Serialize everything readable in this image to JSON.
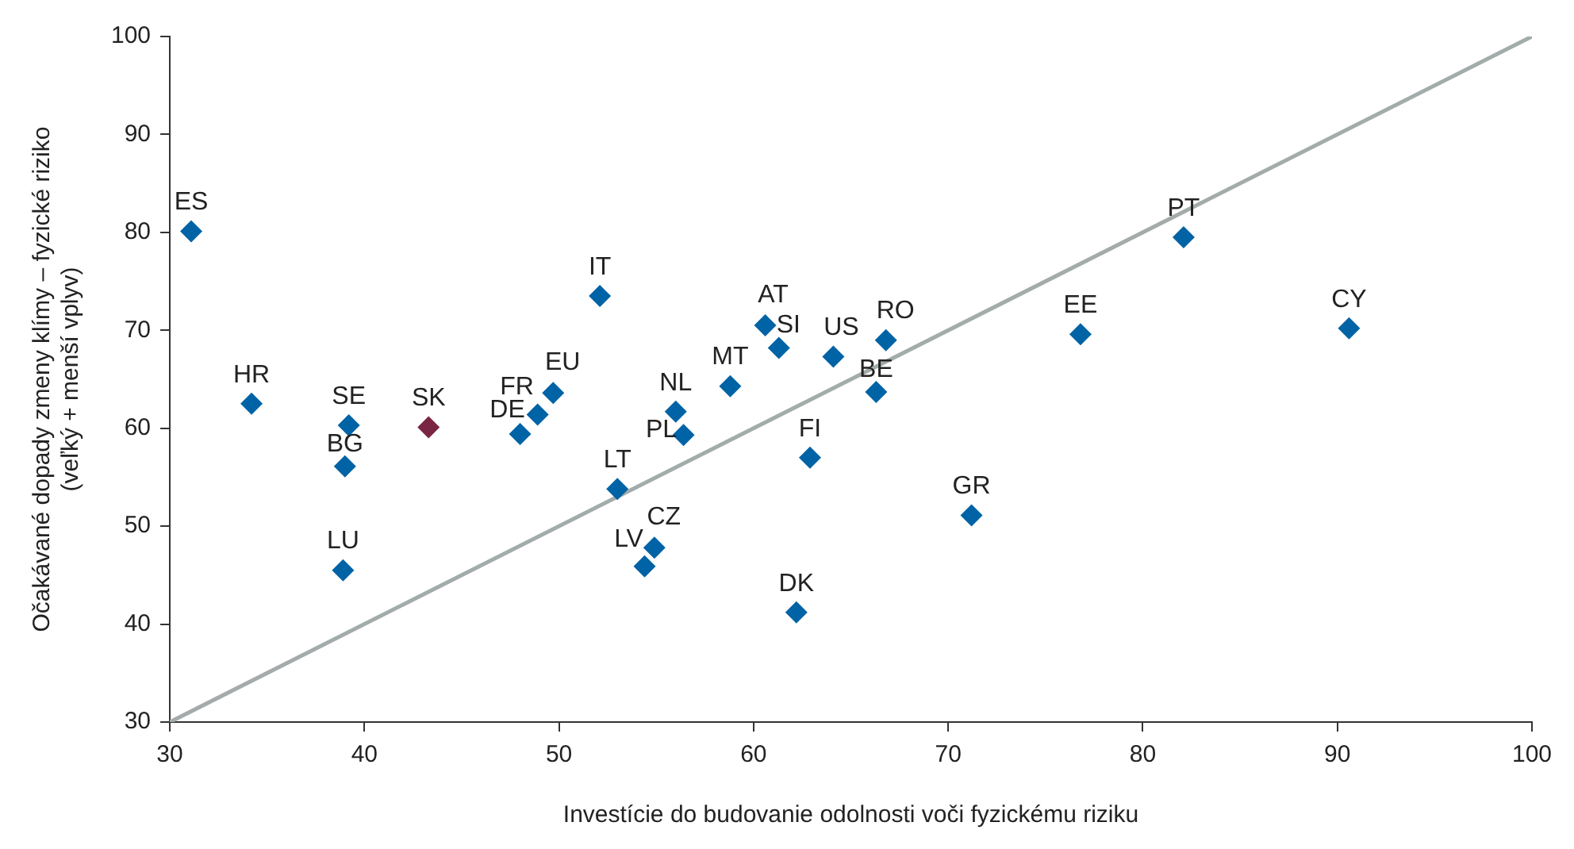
{
  "chart_data": {
    "type": "scatter",
    "xlabel": "Investície do budovanie odolnosti voči fyzickému riziku",
    "ylabel": "Očakávané dopady zmeny klímy – fyzické riziko\n(veľký + menší vplyv)",
    "xlim": [
      30,
      100
    ],
    "xticks": [
      30,
      40,
      50,
      60,
      70,
      80,
      90,
      100
    ],
    "ylim": [
      30,
      100
    ],
    "yticks": [
      30,
      40,
      50,
      60,
      70,
      80,
      90,
      100
    ],
    "grid": false,
    "legend": false,
    "marker": "diamond",
    "series": [
      {
        "name": "ES",
        "color": "#0063a6",
        "x": [
          31.1
        ],
        "values": [
          80.1
        ]
      },
      {
        "name": "HR",
        "color": "#0063a6",
        "x": [
          34.2
        ],
        "values": [
          62.5
        ]
      },
      {
        "name": "SE",
        "color": "#0063a6",
        "x": [
          39.2
        ],
        "values": [
          60.3
        ]
      },
      {
        "name": "BG",
        "color": "#0063a6",
        "x": [
          39.0
        ],
        "values": [
          56.1
        ]
      },
      {
        "name": "LU",
        "color": "#0063a6",
        "x": [
          38.9
        ],
        "values": [
          45.5
        ]
      },
      {
        "name": "SK",
        "color": "#7a2543",
        "x": [
          43.3
        ],
        "values": [
          60.1
        ]
      },
      {
        "name": "DE",
        "color": "#0063a6",
        "x": [
          48.0
        ],
        "values": [
          59.4
        ]
      },
      {
        "name": "FR",
        "color": "#0063a6",
        "x": [
          48.9
        ],
        "values": [
          61.4
        ]
      },
      {
        "name": "EU",
        "color": "#0063a6",
        "x": [
          49.7
        ],
        "values": [
          63.6
        ]
      },
      {
        "name": "IT",
        "color": "#0063a6",
        "x": [
          52.1
        ],
        "values": [
          73.5
        ]
      },
      {
        "name": "LT",
        "color": "#0063a6",
        "x": [
          53.0
        ],
        "values": [
          53.8
        ]
      },
      {
        "name": "LV",
        "color": "#0063a6",
        "x": [
          54.4
        ],
        "values": [
          45.9
        ]
      },
      {
        "name": "CZ",
        "color": "#0063a6",
        "x": [
          54.9
        ],
        "values": [
          47.8
        ]
      },
      {
        "name": "NL",
        "color": "#0063a6",
        "x": [
          56.0
        ],
        "values": [
          61.7
        ]
      },
      {
        "name": "PL",
        "color": "#0063a6",
        "x": [
          56.4
        ],
        "values": [
          59.3
        ]
      },
      {
        "name": "MT",
        "color": "#0063a6",
        "x": [
          58.8
        ],
        "values": [
          64.3
        ]
      },
      {
        "name": "AT",
        "color": "#0063a6",
        "x": [
          60.6
        ],
        "values": [
          70.5
        ]
      },
      {
        "name": "SI",
        "color": "#0063a6",
        "x": [
          61.3
        ],
        "values": [
          68.2
        ]
      },
      {
        "name": "US",
        "color": "#0063a6",
        "x": [
          64.1
        ],
        "values": [
          67.3
        ]
      },
      {
        "name": "RO",
        "color": "#0063a6",
        "x": [
          66.8
        ],
        "values": [
          69.0
        ]
      },
      {
        "name": "BE",
        "color": "#0063a6",
        "x": [
          66.3
        ],
        "values": [
          63.7
        ]
      },
      {
        "name": "FI",
        "color": "#0063a6",
        "x": [
          62.9
        ],
        "values": [
          57.0
        ]
      },
      {
        "name": "DK",
        "color": "#0063a6",
        "x": [
          62.2
        ],
        "values": [
          41.2
        ]
      },
      {
        "name": "GR",
        "color": "#0063a6",
        "x": [
          71.2
        ],
        "values": [
          51.1
        ]
      },
      {
        "name": "EE",
        "color": "#0063a6",
        "x": [
          76.8
        ],
        "values": [
          69.6
        ]
      },
      {
        "name": "PT",
        "color": "#0063a6",
        "x": [
          82.1
        ],
        "values": [
          79.5
        ]
      },
      {
        "name": "CY",
        "color": "#0063a6",
        "x": [
          90.6
        ],
        "values": [
          70.2
        ]
      },
      {
        "type": "line",
        "color": "#a3abab",
        "marker": "none",
        "line_style": "solid",
        "x": [
          30,
          100
        ],
        "values": [
          30,
          100
        ]
      }
    ]
  }
}
